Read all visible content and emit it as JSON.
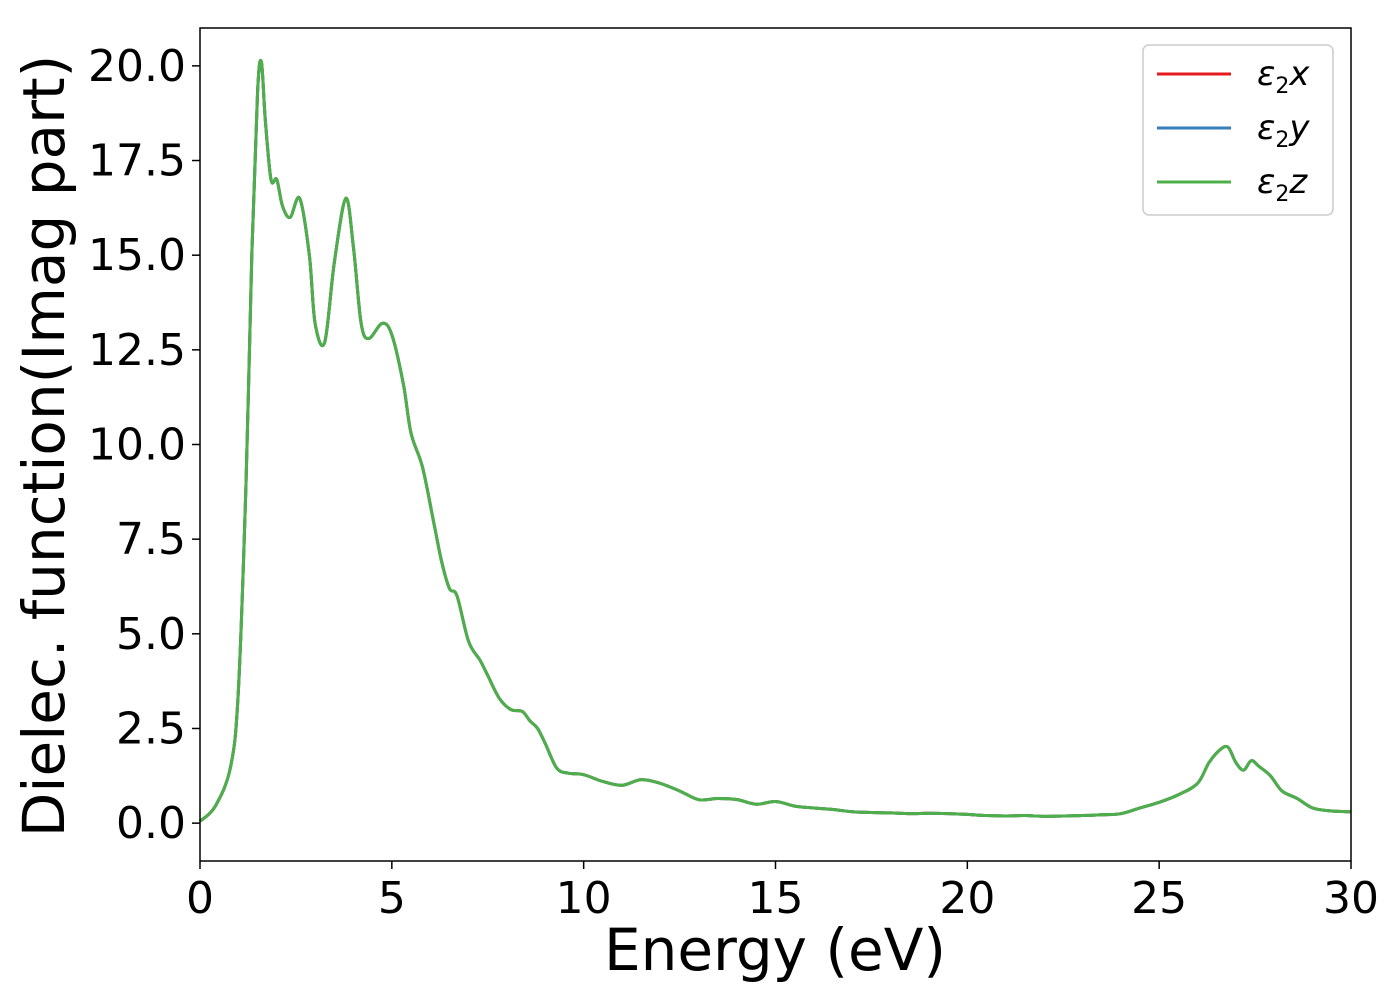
{
  "chart_data": {
    "type": "line",
    "xlabel": "Energy (eV)",
    "ylabel": "Dielec. function(Imag part)",
    "xlim": [
      0,
      30
    ],
    "ylim": [
      -1.0,
      21.0
    ],
    "xticks": [
      0,
      5,
      10,
      15,
      20,
      25,
      30
    ],
    "xtick_labels": [
      "0",
      "5",
      "10",
      "15",
      "20",
      "25",
      "30"
    ],
    "yticks": [
      0,
      2.5,
      5,
      7.5,
      10,
      12.5,
      15,
      17.5,
      20
    ],
    "ytick_labels": [
      "0.0",
      "2.5",
      "5.0",
      "7.5",
      "10.0",
      "12.5",
      "15.0",
      "17.5",
      "20.0"
    ],
    "grid": false,
    "legend_position": "top-right",
    "x": [
      0,
      0.4,
      0.8,
      1.0,
      1.2,
      1.35,
      1.5,
      1.6,
      1.7,
      1.85,
      2.0,
      2.15,
      2.35,
      2.6,
      2.85,
      3.0,
      3.25,
      3.5,
      3.8,
      4.0,
      4.2,
      4.4,
      4.75,
      5.0,
      5.3,
      5.5,
      5.8,
      6.1,
      6.3,
      6.5,
      6.7,
      7.0,
      7.3,
      7.5,
      7.8,
      8.1,
      8.4,
      8.6,
      8.8,
      9.0,
      9.3,
      9.6,
      10.0,
      10.5,
      11.0,
      11.5,
      12.0,
      12.5,
      13.0,
      13.5,
      14.0,
      14.5,
      15.0,
      15.5,
      16.0,
      16.5,
      17.0,
      17.5,
      18.0,
      18.5,
      19.0,
      19.5,
      20.0,
      20.5,
      21.0,
      21.5,
      22.0,
      22.5,
      23.0,
      23.5,
      24.0,
      24.5,
      25.0,
      25.5,
      26.0,
      26.3,
      26.6,
      26.8,
      27.0,
      27.2,
      27.4,
      27.6,
      27.9,
      28.2,
      28.6,
      29.0,
      29.5,
      30.0
    ],
    "series": [
      {
        "name": "ε2x",
        "color": "#e41a1c",
        "values": [
          0.05,
          0.45,
          1.5,
          3.5,
          9.0,
          15.0,
          19.3,
          20.1,
          18.6,
          17.0,
          17.0,
          16.3,
          16.0,
          16.5,
          15.0,
          13.2,
          12.7,
          14.8,
          16.5,
          15.2,
          13.2,
          12.8,
          13.2,
          12.9,
          11.6,
          10.3,
          9.4,
          7.9,
          6.9,
          6.2,
          6.0,
          4.8,
          4.3,
          3.9,
          3.3,
          3.0,
          2.95,
          2.7,
          2.5,
          2.1,
          1.45,
          1.32,
          1.28,
          1.1,
          1.0,
          1.15,
          1.05,
          0.85,
          0.62,
          0.65,
          0.62,
          0.5,
          0.57,
          0.45,
          0.4,
          0.36,
          0.3,
          0.28,
          0.27,
          0.25,
          0.26,
          0.25,
          0.23,
          0.2,
          0.19,
          0.2,
          0.18,
          0.19,
          0.2,
          0.22,
          0.25,
          0.4,
          0.55,
          0.75,
          1.05,
          1.6,
          1.95,
          2.0,
          1.6,
          1.4,
          1.65,
          1.5,
          1.25,
          0.85,
          0.65,
          0.4,
          0.32,
          0.3
        ]
      },
      {
        "name": "ε2y",
        "color": "#377eb8",
        "values": [
          0.05,
          0.45,
          1.5,
          3.5,
          9.0,
          15.0,
          19.3,
          20.1,
          18.6,
          17.0,
          17.0,
          16.3,
          16.0,
          16.5,
          15.0,
          13.2,
          12.7,
          14.8,
          16.5,
          15.2,
          13.2,
          12.8,
          13.2,
          12.9,
          11.6,
          10.3,
          9.4,
          7.9,
          6.9,
          6.2,
          6.0,
          4.8,
          4.3,
          3.9,
          3.3,
          3.0,
          2.95,
          2.7,
          2.5,
          2.1,
          1.45,
          1.32,
          1.28,
          1.1,
          1.0,
          1.15,
          1.05,
          0.85,
          0.62,
          0.65,
          0.62,
          0.5,
          0.57,
          0.45,
          0.4,
          0.36,
          0.3,
          0.28,
          0.27,
          0.25,
          0.26,
          0.25,
          0.23,
          0.2,
          0.19,
          0.2,
          0.18,
          0.19,
          0.2,
          0.22,
          0.25,
          0.4,
          0.55,
          0.75,
          1.05,
          1.6,
          1.95,
          2.0,
          1.6,
          1.4,
          1.65,
          1.5,
          1.25,
          0.85,
          0.65,
          0.4,
          0.32,
          0.3
        ]
      },
      {
        "name": "ε2z",
        "color": "#4daf4a",
        "values": [
          0.05,
          0.45,
          1.5,
          3.5,
          9.0,
          15.0,
          19.3,
          20.1,
          18.6,
          17.0,
          17.0,
          16.3,
          16.0,
          16.5,
          15.0,
          13.2,
          12.7,
          14.8,
          16.5,
          15.2,
          13.2,
          12.8,
          13.2,
          12.9,
          11.6,
          10.3,
          9.4,
          7.9,
          6.9,
          6.2,
          6.0,
          4.8,
          4.3,
          3.9,
          3.3,
          3.0,
          2.95,
          2.7,
          2.5,
          2.1,
          1.45,
          1.32,
          1.28,
          1.1,
          1.0,
          1.15,
          1.05,
          0.85,
          0.62,
          0.65,
          0.62,
          0.5,
          0.57,
          0.45,
          0.4,
          0.36,
          0.3,
          0.28,
          0.27,
          0.25,
          0.26,
          0.25,
          0.23,
          0.2,
          0.19,
          0.2,
          0.18,
          0.19,
          0.2,
          0.22,
          0.25,
          0.4,
          0.55,
          0.75,
          1.05,
          1.6,
          1.95,
          2.0,
          1.6,
          1.4,
          1.65,
          1.5,
          1.25,
          0.85,
          0.65,
          0.4,
          0.32,
          0.3
        ]
      }
    ],
    "legend": [
      {
        "base": "ε",
        "sub": "2",
        "suffix": "x",
        "color": "#e41a1c"
      },
      {
        "base": "ε",
        "sub": "2",
        "suffix": "y",
        "color": "#377eb8"
      },
      {
        "base": "ε",
        "sub": "2",
        "suffix": "z",
        "color": "#4daf4a"
      }
    ]
  }
}
